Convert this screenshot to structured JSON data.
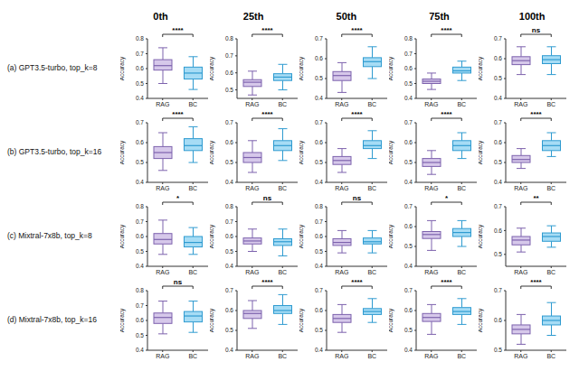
{
  "columns": [
    "0th",
    "25th",
    "50th",
    "75th",
    "100th"
  ],
  "rows": [
    "(a) GPT3.5-turbo, top_k=8",
    "(b) GPT3.5-turbo, top_k=16",
    "(c) Mixtral-7x8b, top_k=8",
    "(d) Mixtral-7x8b, top_k=16"
  ],
  "chart_data": [
    {
      "type": "box",
      "y_label": "Accuracy",
      "categories": [
        "RAG",
        "BC"
      ],
      "colors": [
        "#d6c8ea",
        "#a6dcf5"
      ],
      "ylim": [
        0.4,
        0.8
      ],
      "yticks": [
        0.4,
        0.5,
        0.6,
        0.7,
        0.8
      ],
      "annotation": "****",
      "boxes": [
        {
          "min": 0.5,
          "q1": 0.59,
          "median": 0.62,
          "q3": 0.66,
          "max": 0.74
        },
        {
          "min": 0.46,
          "q1": 0.53,
          "median": 0.57,
          "q3": 0.61,
          "max": 0.68
        }
      ]
    },
    {
      "type": "box",
      "y_label": "Accuracy",
      "categories": [
        "RAG",
        "BC"
      ],
      "colors": [
        "#d6c8ea",
        "#a6dcf5"
      ],
      "ylim": [
        0.45,
        0.8
      ],
      "yticks": [
        0.5,
        0.6,
        0.7,
        0.8
      ],
      "annotation": "****",
      "boxes": [
        {
          "min": 0.47,
          "q1": 0.52,
          "median": 0.545,
          "q3": 0.56,
          "max": 0.61
        },
        {
          "min": 0.5,
          "q1": 0.555,
          "median": 0.575,
          "q3": 0.595,
          "max": 0.65
        }
      ]
    },
    {
      "type": "box",
      "y_label": "Accuracy",
      "categories": [
        "RAG",
        "BC"
      ],
      "colors": [
        "#d6c8ea",
        "#a6dcf5"
      ],
      "ylim": [
        0.4,
        0.7
      ],
      "yticks": [
        0.4,
        0.5,
        0.6,
        0.7
      ],
      "annotation": "****",
      "boxes": [
        {
          "min": 0.43,
          "q1": 0.49,
          "median": 0.515,
          "q3": 0.535,
          "max": 0.58
        },
        {
          "min": 0.5,
          "q1": 0.56,
          "median": 0.585,
          "q3": 0.605,
          "max": 0.66
        }
      ]
    },
    {
      "type": "box",
      "y_label": "Accuracy",
      "categories": [
        "RAG",
        "BC"
      ],
      "colors": [
        "#d6c8ea",
        "#a6dcf5"
      ],
      "ylim": [
        0.4,
        0.8
      ],
      "yticks": [
        0.4,
        0.5,
        0.6,
        0.7,
        0.8
      ],
      "annotation": "****",
      "boxes": [
        {
          "min": 0.46,
          "q1": 0.5,
          "median": 0.515,
          "q3": 0.53,
          "max": 0.57
        },
        {
          "min": 0.52,
          "q1": 0.57,
          "median": 0.585,
          "q3": 0.61,
          "max": 0.65
        }
      ]
    },
    {
      "type": "box",
      "y_label": "Accuracy",
      "categories": [
        "RAG",
        "BC"
      ],
      "colors": [
        "#d6c8ea",
        "#a6dcf5"
      ],
      "ylim": [
        0.4,
        0.7
      ],
      "yticks": [
        0.4,
        0.5,
        0.6,
        0.7
      ],
      "annotation": "ns",
      "boxes": [
        {
          "min": 0.52,
          "q1": 0.57,
          "median": 0.59,
          "q3": 0.61,
          "max": 0.66
        },
        {
          "min": 0.52,
          "q1": 0.575,
          "median": 0.595,
          "q3": 0.615,
          "max": 0.66
        }
      ]
    },
    {
      "type": "box",
      "y_label": "Accuracy",
      "categories": [
        "RAG",
        "BC"
      ],
      "colors": [
        "#d6c8ea",
        "#a6dcf5"
      ],
      "ylim": [
        0.4,
        0.7
      ],
      "yticks": [
        0.4,
        0.5,
        0.6,
        0.7
      ],
      "annotation": "****",
      "boxes": [
        {
          "min": 0.46,
          "q1": 0.52,
          "median": 0.55,
          "q3": 0.58,
          "max": 0.65
        },
        {
          "min": 0.5,
          "q1": 0.56,
          "median": 0.585,
          "q3": 0.62,
          "max": 0.68
        }
      ]
    },
    {
      "type": "box",
      "y_label": "Accuracy",
      "categories": [
        "RAG",
        "BC"
      ],
      "colors": [
        "#d6c8ea",
        "#a6dcf5"
      ],
      "ylim": [
        0.4,
        0.7
      ],
      "yticks": [
        0.4,
        0.5,
        0.6,
        0.7
      ],
      "annotation": "****",
      "boxes": [
        {
          "min": 0.45,
          "q1": 0.5,
          "median": 0.525,
          "q3": 0.55,
          "max": 0.61
        },
        {
          "min": 0.51,
          "q1": 0.56,
          "median": 0.585,
          "q3": 0.61,
          "max": 0.67
        }
      ]
    },
    {
      "type": "box",
      "y_label": "Accuracy",
      "categories": [
        "RAG",
        "BC"
      ],
      "colors": [
        "#d6c8ea",
        "#a6dcf5"
      ],
      "ylim": [
        0.4,
        0.7
      ],
      "yticks": [
        0.4,
        0.5,
        0.6,
        0.7
      ],
      "annotation": "****",
      "boxes": [
        {
          "min": 0.45,
          "q1": 0.49,
          "median": 0.51,
          "q3": 0.53,
          "max": 0.57
        },
        {
          "min": 0.52,
          "q1": 0.57,
          "median": 0.585,
          "q3": 0.61,
          "max": 0.66
        }
      ]
    },
    {
      "type": "box",
      "y_label": "Accuracy",
      "categories": [
        "RAG",
        "BC"
      ],
      "colors": [
        "#d6c8ea",
        "#a6dcf5"
      ],
      "ylim": [
        0.4,
        0.7
      ],
      "yticks": [
        0.4,
        0.5,
        0.6,
        0.7
      ],
      "annotation": "****",
      "boxes": [
        {
          "min": 0.44,
          "q1": 0.48,
          "median": 0.5,
          "q3": 0.52,
          "max": 0.56
        },
        {
          "min": 0.52,
          "q1": 0.56,
          "median": 0.585,
          "q3": 0.61,
          "max": 0.65
        }
      ]
    },
    {
      "type": "box",
      "y_label": "Accuracy",
      "categories": [
        "RAG",
        "BC"
      ],
      "colors": [
        "#d6c8ea",
        "#a6dcf5"
      ],
      "ylim": [
        0.4,
        0.7
      ],
      "yticks": [
        0.4,
        0.5,
        0.6,
        0.7
      ],
      "annotation": "****",
      "boxes": [
        {
          "min": 0.47,
          "q1": 0.5,
          "median": 0.515,
          "q3": 0.535,
          "max": 0.57
        },
        {
          "min": 0.53,
          "q1": 0.56,
          "median": 0.585,
          "q3": 0.61,
          "max": 0.65
        }
      ]
    },
    {
      "type": "box",
      "y_label": "Accuracy",
      "categories": [
        "RAG",
        "BC"
      ],
      "colors": [
        "#d6c8ea",
        "#a6dcf5"
      ],
      "ylim": [
        0.4,
        0.8
      ],
      "yticks": [
        0.4,
        0.5,
        0.6,
        0.7,
        0.8
      ],
      "annotation": "*",
      "boxes": [
        {
          "min": 0.48,
          "q1": 0.55,
          "median": 0.58,
          "q3": 0.62,
          "max": 0.71
        },
        {
          "min": 0.48,
          "q1": 0.53,
          "median": 0.56,
          "q3": 0.6,
          "max": 0.66
        }
      ]
    },
    {
      "type": "box",
      "y_label": "Accuracy",
      "categories": [
        "RAG",
        "BC"
      ],
      "colors": [
        "#d6c8ea",
        "#a6dcf5"
      ],
      "ylim": [
        0.4,
        0.8
      ],
      "yticks": [
        0.4,
        0.5,
        0.6,
        0.7,
        0.8
      ],
      "annotation": "ns",
      "boxes": [
        {
          "min": 0.5,
          "q1": 0.55,
          "median": 0.57,
          "q3": 0.59,
          "max": 0.65
        },
        {
          "min": 0.47,
          "q1": 0.54,
          "median": 0.565,
          "q3": 0.585,
          "max": 0.65
        }
      ]
    },
    {
      "type": "box",
      "y_label": "Accuracy",
      "categories": [
        "RAG",
        "BC"
      ],
      "colors": [
        "#d6c8ea",
        "#a6dcf5"
      ],
      "ylim": [
        0.4,
        0.8
      ],
      "yticks": [
        0.4,
        0.5,
        0.6,
        0.7,
        0.8
      ],
      "annotation": "ns",
      "boxes": [
        {
          "min": 0.49,
          "q1": 0.54,
          "median": 0.56,
          "q3": 0.585,
          "max": 0.64
        },
        {
          "min": 0.49,
          "q1": 0.55,
          "median": 0.565,
          "q3": 0.59,
          "max": 0.64
        }
      ]
    },
    {
      "type": "box",
      "y_label": "Accuracy",
      "categories": [
        "RAG",
        "BC"
      ],
      "colors": [
        "#d6c8ea",
        "#a6dcf5"
      ],
      "ylim": [
        0.4,
        0.7
      ],
      "yticks": [
        0.4,
        0.5,
        0.6,
        0.7
      ],
      "annotation": "*",
      "boxes": [
        {
          "min": 0.48,
          "q1": 0.54,
          "median": 0.56,
          "q3": 0.575,
          "max": 0.63
        },
        {
          "min": 0.5,
          "q1": 0.55,
          "median": 0.57,
          "q3": 0.59,
          "max": 0.63
        }
      ]
    },
    {
      "type": "box",
      "y_label": "Accuracy",
      "categories": [
        "RAG",
        "BC"
      ],
      "colors": [
        "#d6c8ea",
        "#a6dcf5"
      ],
      "ylim": [
        0.45,
        0.7
      ],
      "yticks": [
        0.5,
        0.6,
        0.7
      ],
      "annotation": "**",
      "boxes": [
        {
          "min": 0.51,
          "q1": 0.54,
          "median": 0.56,
          "q3": 0.575,
          "max": 0.61
        },
        {
          "min": 0.53,
          "q1": 0.555,
          "median": 0.575,
          "q3": 0.59,
          "max": 0.62
        }
      ]
    },
    {
      "type": "box",
      "y_label": "Accuracy",
      "categories": [
        "RAG",
        "BC"
      ],
      "colors": [
        "#d6c8ea",
        "#a6dcf5"
      ],
      "ylim": [
        0.4,
        0.8
      ],
      "yticks": [
        0.4,
        0.5,
        0.6,
        0.7,
        0.8
      ],
      "annotation": "ns",
      "boxes": [
        {
          "min": 0.51,
          "q1": 0.58,
          "median": 0.62,
          "q3": 0.65,
          "max": 0.73
        },
        {
          "min": 0.52,
          "q1": 0.59,
          "median": 0.63,
          "q3": 0.66,
          "max": 0.73
        }
      ]
    },
    {
      "type": "box",
      "y_label": "Accuracy",
      "categories": [
        "RAG",
        "BC"
      ],
      "colors": [
        "#d6c8ea",
        "#a6dcf5"
      ],
      "ylim": [
        0.4,
        0.7
      ],
      "yticks": [
        0.4,
        0.5,
        0.6,
        0.7
      ],
      "annotation": "****",
      "boxes": [
        {
          "min": 0.51,
          "q1": 0.56,
          "median": 0.585,
          "q3": 0.6,
          "max": 0.65
        },
        {
          "min": 0.53,
          "q1": 0.585,
          "median": 0.6,
          "q3": 0.625,
          "max": 0.68
        }
      ]
    },
    {
      "type": "box",
      "y_label": "Accuracy",
      "categories": [
        "RAG",
        "BC"
      ],
      "colors": [
        "#d6c8ea",
        "#a6dcf5"
      ],
      "ylim": [
        0.4,
        0.7
      ],
      "yticks": [
        0.4,
        0.5,
        0.6,
        0.7
      ],
      "annotation": "****",
      "boxes": [
        {
          "min": 0.49,
          "q1": 0.54,
          "median": 0.56,
          "q3": 0.58,
          "max": 0.63
        },
        {
          "min": 0.54,
          "q1": 0.58,
          "median": 0.595,
          "q3": 0.61,
          "max": 0.66
        }
      ]
    },
    {
      "type": "box",
      "y_label": "Accuracy",
      "categories": [
        "RAG",
        "BC"
      ],
      "colors": [
        "#d6c8ea",
        "#a6dcf5"
      ],
      "ylim": [
        0.4,
        0.7
      ],
      "yticks": [
        0.4,
        0.5,
        0.6,
        0.7
      ],
      "annotation": "****",
      "boxes": [
        {
          "min": 0.48,
          "q1": 0.545,
          "median": 0.565,
          "q3": 0.585,
          "max": 0.63
        },
        {
          "min": 0.53,
          "q1": 0.58,
          "median": 0.595,
          "q3": 0.615,
          "max": 0.66
        }
      ]
    },
    {
      "type": "box",
      "y_label": "Accuracy",
      "categories": [
        "RAG",
        "BC"
      ],
      "colors": [
        "#d6c8ea",
        "#a6dcf5"
      ],
      "ylim": [
        0.5,
        0.7
      ],
      "yticks": [
        0.5,
        0.6,
        0.7
      ],
      "annotation": "****",
      "boxes": [
        {
          "min": 0.52,
          "q1": 0.555,
          "median": 0.57,
          "q3": 0.585,
          "max": 0.62
        },
        {
          "min": 0.55,
          "q1": 0.585,
          "median": 0.6,
          "q3": 0.615,
          "max": 0.66
        }
      ]
    }
  ]
}
